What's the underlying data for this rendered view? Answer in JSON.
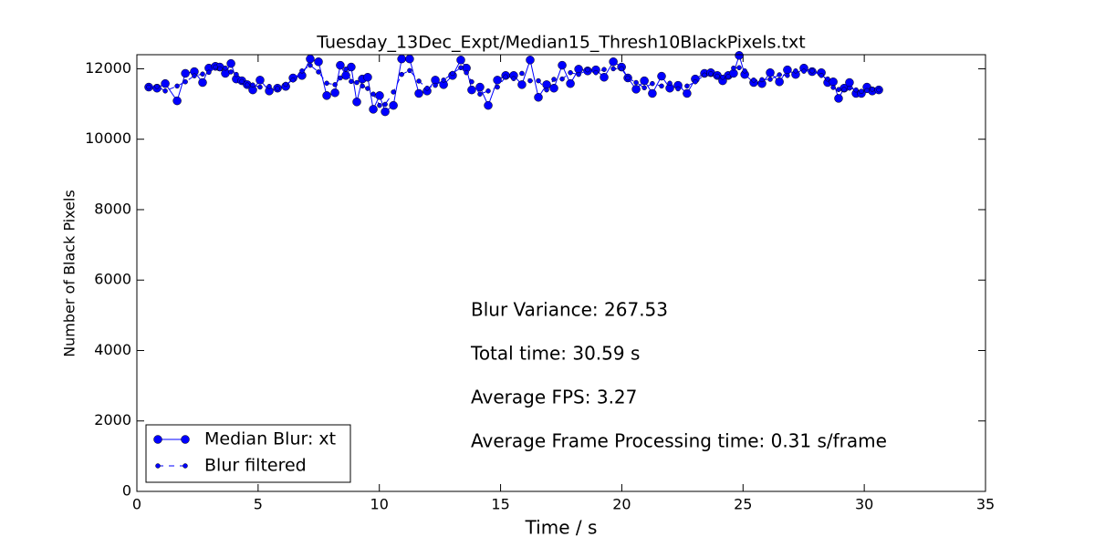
{
  "chart_data": {
    "type": "line",
    "title": "Tuesday_13Dec_Expt/Median15_Thresh10BlackPixels.txt",
    "x_label": "Time / s",
    "y_label": "Number of Black Pixels",
    "x": [
      0.49,
      0.83,
      1.17,
      1.66,
      2.0,
      2.37,
      2.71,
      2.97,
      3.24,
      3.42,
      3.65,
      3.88,
      4.1,
      4.33,
      4.55,
      4.78,
      5.08,
      5.46,
      5.8,
      6.14,
      6.44,
      6.81,
      7.15,
      7.49,
      7.83,
      8.17,
      8.39,
      8.62,
      8.84,
      9.07,
      9.3,
      9.52,
      9.75,
      10.01,
      10.24,
      10.58,
      10.92,
      11.25,
      11.63,
      11.97,
      12.31,
      12.65,
      13.02,
      13.36,
      13.59,
      13.81,
      14.15,
      14.49,
      14.87,
      15.21,
      15.54,
      15.88,
      16.22,
      16.56,
      16.9,
      17.2,
      17.54,
      17.88,
      18.22,
      18.59,
      18.93,
      19.27,
      19.65,
      19.99,
      20.25,
      20.59,
      20.93,
      21.26,
      21.64,
      21.98,
      22.32,
      22.69,
      23.03,
      23.41,
      23.67,
      23.94,
      24.16,
      24.39,
      24.61,
      24.84,
      25.07,
      25.44,
      25.78,
      26.12,
      26.5,
      26.83,
      27.17,
      27.51,
      27.85,
      28.23,
      28.49,
      28.72,
      28.94,
      29.17,
      29.39,
      29.66,
      29.88,
      30.11,
      30.33,
      30.6
    ],
    "series": [
      {
        "name": "Median Blur: xt",
        "color": "#0000ff",
        "style": "solid",
        "values": [
          11480,
          11450,
          11580,
          11090,
          11870,
          11920,
          11610,
          12020,
          12070,
          12050,
          11870,
          12150,
          11710,
          11660,
          11550,
          11400,
          11680,
          11370,
          11450,
          11500,
          11740,
          11810,
          12280,
          12200,
          11240,
          11320,
          12100,
          11810,
          12050,
          11060,
          11710,
          11760,
          10850,
          11240,
          10780,
          10960,
          12280,
          12280,
          11300,
          11370,
          11680,
          11550,
          11810,
          12250,
          12020,
          11400,
          11480,
          10960,
          11680,
          11810,
          11810,
          11550,
          12250,
          11190,
          11550,
          11450,
          12100,
          11580,
          11990,
          11940,
          11970,
          11760,
          12200,
          12050,
          11740,
          11420,
          11660,
          11300,
          11790,
          11450,
          11530,
          11300,
          11710,
          11870,
          11890,
          11810,
          11660,
          11810,
          11870,
          12380,
          11840,
          11610,
          11580,
          11890,
          11630,
          11970,
          11840,
          12020,
          11920,
          11890,
          11610,
          11630,
          11160,
          11450,
          11610,
          11300,
          11300,
          11480,
          11370,
          11400
        ]
      },
      {
        "name": "Blur filtered",
        "color": "#0000ff",
        "style": "dashed",
        "values": [
          11480,
          11500,
          11370,
          11510,
          11630,
          11800,
          11850,
          11900,
          12050,
          12000,
          12020,
          11910,
          11840,
          11640,
          11540,
          11540,
          11480,
          11500,
          11440,
          11560,
          11680,
          11940,
          12100,
          11910,
          11590,
          11550,
          11740,
          11990,
          11640,
          11610,
          11510,
          11440,
          11280,
          10960,
          10990,
          11340,
          11840,
          11950,
          11650,
          11450,
          11530,
          11680,
          11870,
          12030,
          11890,
          11630,
          11280,
          11370,
          11480,
          11770,
          11720,
          11870,
          11660,
          11660,
          11400,
          11700,
          11710,
          11890,
          11840,
          11970,
          11890,
          11980,
          12000,
          12000,
          11740,
          11610,
          11460,
          11580,
          11510,
          11590,
          11430,
          11510,
          11630,
          11820,
          11860,
          11790,
          11760,
          11780,
          12020,
          12030,
          11940,
          11680,
          11690,
          11700,
          11830,
          11810,
          11940,
          11930,
          11940,
          11810,
          11710,
          11470,
          11410,
          11410,
          11450,
          11400,
          11360,
          11380,
          11420,
          11400
        ]
      }
    ],
    "xlim": [
      0,
      35
    ],
    "xticks": [
      0,
      5,
      10,
      15,
      20,
      25,
      30,
      35
    ],
    "ylim": [
      0,
      12400
    ],
    "yticks": [
      0,
      2000,
      4000,
      6000,
      8000,
      10000,
      12000
    ],
    "grid": false,
    "legend": "lower left",
    "annotations": [
      "Blur Variance: 267.53",
      "Total time: 30.59 s",
      "Average FPS: 3.27",
      "Average Frame Processing time: 0.31 s/frame"
    ]
  }
}
